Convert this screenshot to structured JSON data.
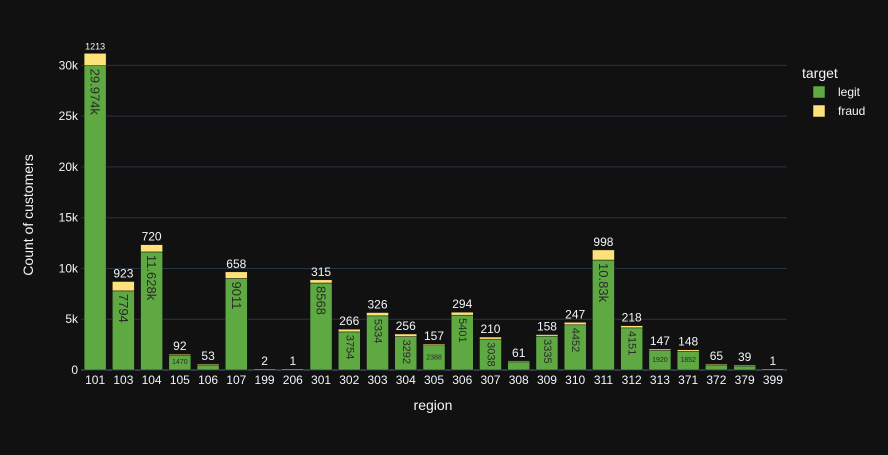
{
  "chart_data": {
    "type": "bar",
    "stacked": true,
    "xlabel": "region",
    "ylabel": "Count of customers",
    "ylim": [
      0,
      32500
    ],
    "yticks": [
      0,
      5000,
      10000,
      15000,
      20000,
      25000,
      30000
    ],
    "ytick_labels": [
      "0",
      "5k",
      "10k",
      "15k",
      "20k",
      "25k",
      "30k"
    ],
    "categories": [
      "101",
      "103",
      "104",
      "105",
      "106",
      "107",
      "199",
      "206",
      "301",
      "302",
      "303",
      "304",
      "305",
      "306",
      "307",
      "308",
      "309",
      "310",
      "311",
      "312",
      "313",
      "371",
      "372",
      "379",
      "399"
    ],
    "legend": {
      "title": "target",
      "placement": "top-right"
    },
    "grid": true,
    "series": [
      {
        "name": "legit",
        "color": "#5ea941",
        "values": [
          29974,
          7794,
          11628,
          1470,
          500,
          9011,
          0,
          0,
          8568,
          3754,
          5334,
          3292,
          2388,
          5401,
          3038,
          800,
          3335,
          4452,
          10830,
          4151,
          1920,
          1852,
          500,
          400,
          0
        ],
        "labels": [
          "29.974k",
          "7794",
          "11.628k",
          "1470",
          "",
          "9011",
          "",
          "",
          "8568",
          "3754",
          "5334",
          "3292",
          "2388",
          "5401",
          "3038",
          "",
          "3335",
          "4452",
          "10.83k",
          "4151",
          "1920",
          "1852",
          "",
          "",
          ""
        ]
      },
      {
        "name": "fraud",
        "color": "#fde27a",
        "values": [
          1213,
          923,
          720,
          92,
          53,
          658,
          2,
          1,
          315,
          266,
          326,
          256,
          157,
          294,
          210,
          61,
          158,
          247,
          998,
          218,
          147,
          148,
          65,
          39,
          1
        ],
        "labels": [
          "1213",
          "923",
          "720",
          "92",
          "53",
          "658",
          "2",
          "1",
          "315",
          "266",
          "326",
          "256",
          "157",
          "294",
          "210",
          "61",
          "158",
          "247",
          "998",
          "218",
          "147",
          "148",
          "65",
          "39",
          "1"
        ]
      }
    ]
  },
  "colors": {
    "background": "#111111",
    "grid": "#283442",
    "text": "#f2f5fa",
    "inner_label": "#2a2a2a"
  }
}
